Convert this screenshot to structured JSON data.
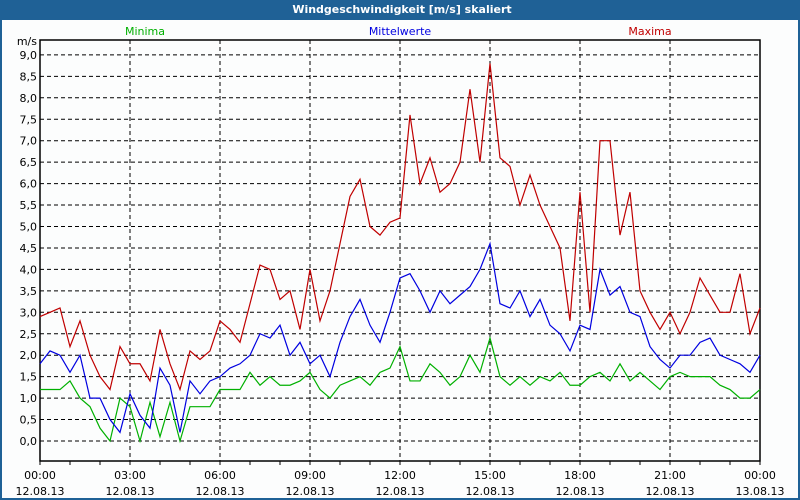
{
  "title": "Windgeschwindigkeit [m/s] skaliert",
  "colors": {
    "min": "#00b000",
    "mean": "#0000e0",
    "max": "#c00000",
    "titlebar": "#1f6196"
  },
  "chart_data": {
    "type": "line",
    "title": "Windgeschwindigkeit [m/s] skaliert",
    "ylabel": "m/s",
    "xlabel": "",
    "ylim": [
      -0.5,
      9.2
    ],
    "yticks": [
      "0,0",
      "0,5",
      "1,0",
      "1,5",
      "2,0",
      "2,5",
      "3,0",
      "3,5",
      "4,0",
      "4,5",
      "5,0",
      "5,5",
      "6,0",
      "6,5",
      "7,0",
      "7,5",
      "8,0",
      "8,5",
      "9,0"
    ],
    "ytick_values": [
      0,
      0.5,
      1,
      1.5,
      2,
      2.5,
      3,
      3.5,
      4,
      4.5,
      5,
      5.5,
      6,
      6.5,
      7,
      7.5,
      8,
      8.5,
      9
    ],
    "xlim_hours": [
      0,
      24
    ],
    "xticks": [
      {
        "hour": 0,
        "time": "00:00",
        "date": "12.08.13"
      },
      {
        "hour": 3,
        "time": "03:00",
        "date": "12.08.13"
      },
      {
        "hour": 6,
        "time": "06:00",
        "date": "12.08.13"
      },
      {
        "hour": 9,
        "time": "09:00",
        "date": "12.08.13"
      },
      {
        "hour": 12,
        "time": "12:00",
        "date": "12.08.13"
      },
      {
        "hour": 15,
        "time": "15:00",
        "date": "12.08.13"
      },
      {
        "hour": 18,
        "time": "18:00",
        "date": "12.08.13"
      },
      {
        "hour": 21,
        "time": "21:00",
        "date": "12.08.13"
      },
      {
        "hour": 24,
        "time": "00:00",
        "date": "13.08.13"
      }
    ],
    "grid": true,
    "legend_placement": "top",
    "x_step_minutes": 20,
    "series": [
      {
        "name": "Minima",
        "key": "min",
        "values": [
          1.2,
          1.2,
          1.2,
          1.4,
          1.0,
          0.8,
          0.3,
          0.0,
          1.0,
          0.8,
          0.0,
          0.9,
          0.1,
          0.9,
          0.0,
          0.8,
          0.8,
          0.8,
          1.2,
          1.2,
          1.2,
          1.6,
          1.3,
          1.5,
          1.3,
          1.3,
          1.4,
          1.6,
          1.2,
          1.0,
          1.3,
          1.4,
          1.5,
          1.3,
          1.6,
          1.7,
          2.2,
          1.4,
          1.4,
          1.8,
          1.6,
          1.3,
          1.5,
          2.0,
          1.6,
          2.4,
          1.5,
          1.3,
          1.5,
          1.3,
          1.5,
          1.4,
          1.6,
          1.3,
          1.3,
          1.5,
          1.6,
          1.4,
          1.8,
          1.4,
          1.6,
          1.4,
          1.2,
          1.5,
          1.6,
          1.5,
          1.5,
          1.5,
          1.3,
          1.2,
          1.0,
          1.0,
          1.2
        ]
      },
      {
        "name": "Mittelwerte",
        "key": "mean",
        "values": [
          1.8,
          2.1,
          2.0,
          1.6,
          2.0,
          1.0,
          1.0,
          0.5,
          0.2,
          1.1,
          0.6,
          0.3,
          1.7,
          1.3,
          0.2,
          1.4,
          1.1,
          1.4,
          1.5,
          1.7,
          1.8,
          2.0,
          2.5,
          2.4,
          2.7,
          2.0,
          2.3,
          1.8,
          2.0,
          1.5,
          2.3,
          2.9,
          3.3,
          2.7,
          2.3,
          3.0,
          3.8,
          3.9,
          3.5,
          3.0,
          3.5,
          3.2,
          3.4,
          3.6,
          4.0,
          4.6,
          3.2,
          3.1,
          3.5,
          2.9,
          3.3,
          2.7,
          2.5,
          2.1,
          2.7,
          2.6,
          4.0,
          3.4,
          3.6,
          3.0,
          2.9,
          2.2,
          1.9,
          1.7,
          2.0,
          2.0,
          2.3,
          2.4,
          2.0,
          1.9,
          1.8,
          1.6,
          2.0
        ]
      },
      {
        "name": "Maxima",
        "key": "max",
        "values": [
          2.9,
          3.0,
          3.1,
          2.2,
          2.8,
          2.0,
          1.5,
          1.2,
          2.2,
          1.8,
          1.8,
          1.4,
          2.6,
          1.8,
          1.2,
          2.1,
          1.9,
          2.1,
          2.8,
          2.6,
          2.3,
          3.2,
          4.1,
          4.0,
          3.3,
          3.5,
          2.6,
          4.0,
          2.8,
          3.5,
          4.6,
          5.7,
          6.1,
          5.0,
          4.8,
          5.1,
          5.2,
          7.6,
          6.0,
          6.6,
          5.8,
          6.0,
          6.5,
          8.2,
          6.5,
          8.8,
          6.6,
          6.4,
          5.5,
          6.2,
          5.5,
          5.0,
          4.5,
          2.8,
          5.8,
          3.0,
          7.0,
          7.0,
          4.8,
          5.8,
          3.5,
          3.0,
          2.6,
          3.0,
          2.5,
          3.0,
          3.8,
          3.4,
          3.0,
          3.0,
          3.9,
          2.5,
          3.1
        ]
      }
    ]
  }
}
